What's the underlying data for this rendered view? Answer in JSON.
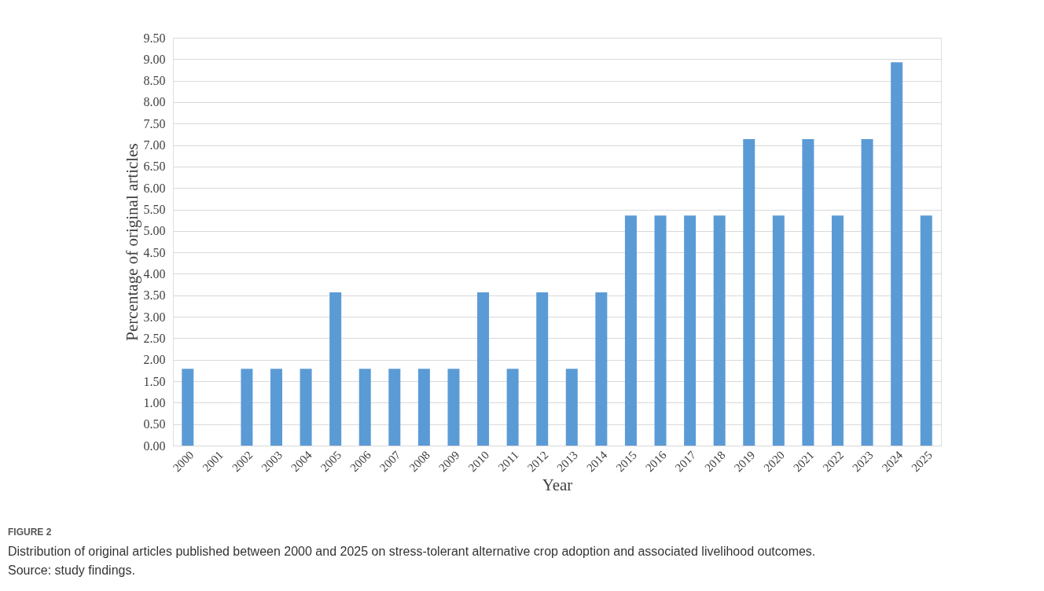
{
  "chart_data": {
    "type": "bar",
    "xlabel": "Year",
    "ylabel": "Percentage of original articles",
    "categories": [
      "2000",
      "2001",
      "2002",
      "2003",
      "2004",
      "2005",
      "2006",
      "2007",
      "2008",
      "2009",
      "2010",
      "2011",
      "2012",
      "2013",
      "2014",
      "2015",
      "2016",
      "2017",
      "2018",
      "2019",
      "2020",
      "2021",
      "2022",
      "2023",
      "2024",
      "2025"
    ],
    "values": [
      1.79,
      0,
      1.79,
      1.79,
      1.79,
      3.57,
      1.79,
      1.79,
      1.79,
      1.79,
      3.57,
      1.79,
      3.57,
      1.79,
      3.57,
      5.36,
      5.36,
      5.36,
      5.36,
      7.14,
      5.36,
      7.14,
      5.36,
      7.14,
      8.93,
      5.36
    ],
    "color": "#5b9bd5",
    "ylim": [
      0,
      9.5
    ],
    "yticks": [
      {
        "value": 0,
        "label": "0.00"
      },
      {
        "value": 0.5,
        "label": "0.50"
      },
      {
        "value": 1,
        "label": "1.00"
      },
      {
        "value": 1.5,
        "label": "1.50"
      },
      {
        "value": 2,
        "label": "2.00"
      },
      {
        "value": 2.5,
        "label": "2.50"
      },
      {
        "value": 3,
        "label": "3.00"
      },
      {
        "value": 3.5,
        "label": "3.50"
      },
      {
        "value": 4,
        "label": "4.00"
      },
      {
        "value": 4.5,
        "label": "4.50"
      },
      {
        "value": 5,
        "label": "5.00"
      },
      {
        "value": 5.5,
        "label": "5.50"
      },
      {
        "value": 6,
        "label": "6.00"
      },
      {
        "value": 6.5,
        "label": "6.50"
      },
      {
        "value": 7,
        "label": "7.00"
      },
      {
        "value": 7.5,
        "label": "7.50"
      },
      {
        "value": 8,
        "label": "8.00"
      },
      {
        "value": 8.5,
        "label": "8.50"
      },
      {
        "value": 9,
        "label": "9.00"
      },
      {
        "value": 9.5,
        "label": "9.50"
      }
    ],
    "grid": "y",
    "annotations": [
      "FIGURE 2",
      "Distribution of original articles published between 2000 and 2025 on stress-tolerant alternative crop adoption and associated livelihood outcomes.",
      "Source: study findings."
    ]
  }
}
